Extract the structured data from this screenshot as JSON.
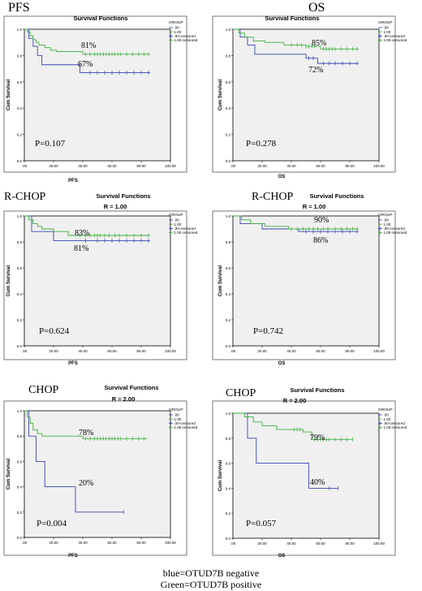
{
  "legend_labels": {
    "title": "GROUP",
    "items": [
      ".00",
      "1.00",
      ".00-censored",
      "1.00-censored"
    ]
  },
  "colors": {
    "negative": "#3a45b0",
    "positive": "#3fae3f",
    "panel_bg": "#f0f0f0",
    "frame": "#000000"
  },
  "footer": {
    "line1": "blue=OTUD7B negative",
    "line2": "Green=OTUD7B positive"
  },
  "chart_data": [
    {
      "type": "line",
      "side_label": "PFS",
      "title": "Survival Functions",
      "subtitle": "",
      "xlabel": "PFS",
      "ylabel": "Cum Survival",
      "xlim": [
        0,
        100
      ],
      "ylim": [
        0,
        1
      ],
      "x_ticks": [
        ".00",
        "20.00",
        "40.00",
        "60.00",
        "80.00",
        "100.00"
      ],
      "y_ticks": [
        "0.0",
        "0.2",
        "0.4",
        "0.6",
        "0.8",
        "1.0"
      ],
      "p_value": "P=0.107",
      "pct_green": "81%",
      "pct_blue": "67%",
      "series": [
        {
          "name": ".00",
          "color_key": "negative",
          "x": [
            0,
            3,
            6,
            9,
            12,
            38,
            86
          ],
          "y": [
            1.0,
            0.93,
            0.87,
            0.8,
            0.73,
            0.67,
            0.67
          ],
          "censored": [
            45,
            50,
            55,
            60,
            65,
            70,
            75,
            80,
            85
          ]
        },
        {
          "name": "1.00",
          "color_key": "positive",
          "x": [
            0,
            2,
            4,
            6,
            8,
            10,
            14,
            18,
            22,
            40,
            86
          ],
          "y": [
            1.0,
            0.98,
            0.95,
            0.92,
            0.9,
            0.88,
            0.86,
            0.84,
            0.83,
            0.81,
            0.81
          ],
          "censored": [
            42,
            45,
            48,
            50,
            52,
            54,
            56,
            58,
            60,
            62,
            64,
            66,
            70,
            74,
            78,
            82,
            85
          ]
        }
      ]
    },
    {
      "type": "line",
      "side_label": "OS",
      "title": "Survival Functions",
      "subtitle": "",
      "xlabel": "OS",
      "ylabel": "Cum Survival",
      "xlim": [
        0,
        100
      ],
      "ylim": [
        0,
        1
      ],
      "x_ticks": [
        ".00",
        "20.00",
        "40.00",
        "60.00",
        "80.00",
        "100.00"
      ],
      "y_ticks": [
        "0.0",
        "0.2",
        "0.4",
        "0.6",
        "0.8",
        "1.0"
      ],
      "p_value": "P=0.278",
      "pct_green": "85%",
      "pct_blue": "72%",
      "series": [
        {
          "name": ".00",
          "color_key": "negative",
          "x": [
            0,
            5,
            10,
            15,
            50,
            58,
            86
          ],
          "y": [
            1.0,
            0.94,
            0.88,
            0.81,
            0.78,
            0.74,
            0.74
          ],
          "censored": [
            52,
            55,
            62,
            66,
            70,
            75,
            80,
            85
          ]
        },
        {
          "name": "1.00",
          "color_key": "positive",
          "x": [
            0,
            4,
            8,
            14,
            22,
            35,
            50,
            60,
            86
          ],
          "y": [
            1.0,
            0.97,
            0.94,
            0.91,
            0.9,
            0.88,
            0.87,
            0.85,
            0.85
          ],
          "censored": [
            40,
            44,
            47,
            50,
            52,
            54,
            56,
            62,
            64,
            66,
            68,
            70,
            74,
            78,
            82,
            85
          ]
        }
      ]
    },
    {
      "type": "line",
      "side_label": "R-CHOP",
      "title": "Survival Functions",
      "subtitle": "R = 1.00",
      "xlabel": "PFS",
      "ylabel": "Cum Survival",
      "xlim": [
        0,
        100
      ],
      "ylim": [
        0,
        1
      ],
      "x_ticks": [
        ".00",
        "20.00",
        "40.00",
        "60.00",
        "80.00",
        "100.00"
      ],
      "y_ticks": [
        "0.0",
        "0.2",
        "0.4",
        "0.6",
        "0.8",
        "1.0"
      ],
      "p_value": "P=0.624",
      "pct_green": "83%",
      "pct_blue": "81%",
      "series": [
        {
          "name": ".00",
          "color_key": "negative",
          "x": [
            0,
            5,
            20,
            86
          ],
          "y": [
            1.0,
            0.88,
            0.81,
            0.81
          ],
          "censored": [
            42,
            50,
            55,
            60,
            65,
            70,
            75,
            80,
            85
          ]
        },
        {
          "name": "1.00",
          "color_key": "positive",
          "x": [
            0,
            3,
            6,
            9,
            12,
            20,
            30,
            86
          ],
          "y": [
            1.0,
            0.97,
            0.94,
            0.92,
            0.9,
            0.88,
            0.85,
            0.85
          ],
          "censored": [
            38,
            42,
            45,
            48,
            50,
            52,
            55,
            58,
            62,
            65,
            70,
            75,
            80,
            85
          ]
        }
      ]
    },
    {
      "type": "line",
      "side_label": "R-CHOP",
      "title": "Survival Functions",
      "subtitle": "R = 1.00",
      "xlabel": "OS",
      "ylabel": "Cum Survival",
      "xlim": [
        0,
        100
      ],
      "ylim": [
        0,
        1
      ],
      "x_ticks": [
        ".00",
        "20.00",
        "40.00",
        "60.00",
        "80.00",
        "100.00"
      ],
      "y_ticks": [
        "0.0",
        "0.2",
        "0.4",
        "0.6",
        "0.8",
        "1.0"
      ],
      "p_value": "P=0.742",
      "pct_green": "90%",
      "pct_blue": "86%",
      "series": [
        {
          "name": ".00",
          "color_key": "negative",
          "x": [
            0,
            5,
            20,
            45,
            86
          ],
          "y": [
            1.0,
            0.94,
            0.9,
            0.88,
            0.88
          ],
          "censored": [
            50,
            55,
            60,
            65,
            70,
            75,
            80,
            85
          ]
        },
        {
          "name": "1.00",
          "color_key": "positive",
          "x": [
            0,
            6,
            12,
            22,
            38,
            86
          ],
          "y": [
            1.0,
            0.97,
            0.94,
            0.92,
            0.9,
            0.9
          ],
          "censored": [
            40,
            44,
            48,
            52,
            55,
            58,
            62,
            65,
            70,
            74,
            78,
            82,
            85
          ]
        }
      ]
    },
    {
      "type": "line",
      "side_label": "CHOP",
      "title": "Survival Functions",
      "subtitle": "R = 2.00",
      "xlabel": "PFS",
      "ylabel": "Cum Survival",
      "xlim": [
        0,
        100
      ],
      "ylim": [
        0,
        1
      ],
      "x_ticks": [
        ".00",
        "20.00",
        "40.00",
        "60.00",
        "80.00",
        "100.00"
      ],
      "y_ticks": [
        "0.0",
        "0.2",
        "0.4",
        "0.6",
        "0.8",
        "1.0"
      ],
      "p_value": "P=0.004",
      "pct_green": "78%",
      "pct_blue": "20%",
      "series": [
        {
          "name": ".00",
          "color_key": "negative",
          "x": [
            0,
            3,
            8,
            14,
            35,
            68
          ],
          "y": [
            1.0,
            0.8,
            0.6,
            0.4,
            0.2,
            0.2
          ],
          "censored": [
            68
          ]
        },
        {
          "name": "1.00",
          "color_key": "positive",
          "x": [
            0,
            2,
            4,
            6,
            9,
            12,
            40,
            84
          ],
          "y": [
            1.0,
            0.95,
            0.9,
            0.85,
            0.82,
            0.8,
            0.78,
            0.78
          ],
          "censored": [
            42,
            45,
            48,
            50,
            52,
            54,
            56,
            58,
            60,
            62,
            64,
            66,
            70,
            74,
            78,
            82
          ]
        }
      ]
    },
    {
      "type": "line",
      "side_label": "CHOP",
      "title": "Survival Functions",
      "subtitle": "R = 2.00",
      "xlabel": "OS",
      "ylabel": "Cum Survival",
      "xlim": [
        0,
        100
      ],
      "ylim": [
        0,
        1
      ],
      "x_ticks": [
        ".00",
        "20.00",
        "40.00",
        "60.00",
        "80.00",
        "100.00"
      ],
      "y_ticks": [
        "0.0",
        "0.2",
        "0.4",
        "0.6",
        "0.8",
        "1.0"
      ],
      "p_value": "P=0.057",
      "pct_green": "79%",
      "pct_blue": "40%",
      "series": [
        {
          "name": ".00",
          "color_key": "negative",
          "x": [
            0,
            10,
            16,
            52,
            72
          ],
          "y": [
            1.0,
            0.8,
            0.6,
            0.4,
            0.4
          ],
          "censored": [
            66,
            72
          ]
        },
        {
          "name": "1.00",
          "color_key": "positive",
          "x": [
            0,
            8,
            14,
            20,
            30,
            48,
            54,
            82
          ],
          "y": [
            1.0,
            0.97,
            0.93,
            0.9,
            0.87,
            0.85,
            0.79,
            0.79
          ],
          "censored": [
            42,
            44,
            46,
            56,
            58,
            60,
            62,
            64,
            66,
            70,
            74,
            78,
            82
          ]
        }
      ]
    }
  ]
}
